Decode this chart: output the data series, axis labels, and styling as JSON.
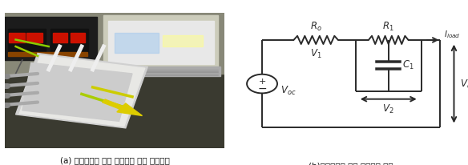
{
  "caption_a": "(a) 역전기투석 스택 모델링을 위한 실험장치",
  "caption_b": "(b)역전기투석 스택 등가회로 모델",
  "bg_color": "#ffffff",
  "circuit_color": "#2a2a2a",
  "font_size_caption": 7.5,
  "photo_bg": "#b8b5ae",
  "photo_grid": "#4a4a40",
  "photo_device_gray": "#c8c8c8",
  "photo_instrument_dark": "#1a1a1a",
  "photo_laptop_light": "#d8d8d5",
  "photo_red1": "#cc2000",
  "photo_red2": "#dd1100",
  "photo_yellow": "#ccbb00"
}
